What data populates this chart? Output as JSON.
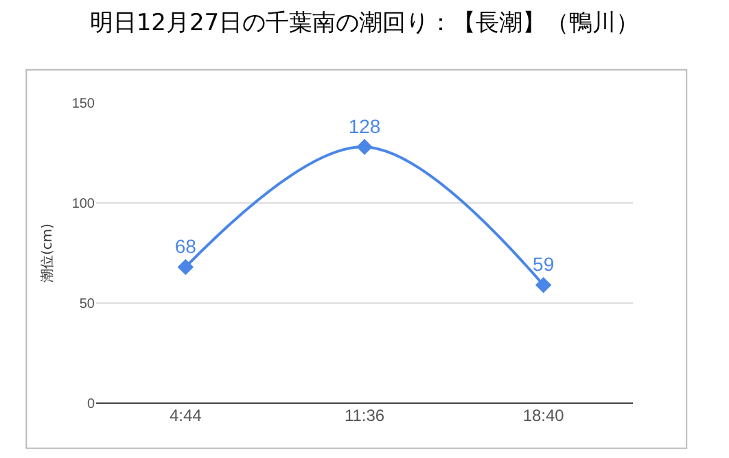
{
  "chart_data": {
    "type": "line",
    "title": "明日12月27日の千葉南の潮回り：【長潮】（鴨川）",
    "ylabel": "潮位(cm)",
    "categories": [
      "4:44",
      "11:36",
      "18:40"
    ],
    "series": [
      {
        "color": "#4a86e8",
        "values": [
          68,
          128,
          59
        ]
      }
    ],
    "ylim": [
      0,
      150
    ],
    "yticks": [
      0,
      50,
      100,
      150
    ],
    "grid": "y",
    "marker": "diamond",
    "line_style": "solid",
    "data_labels": true
  }
}
